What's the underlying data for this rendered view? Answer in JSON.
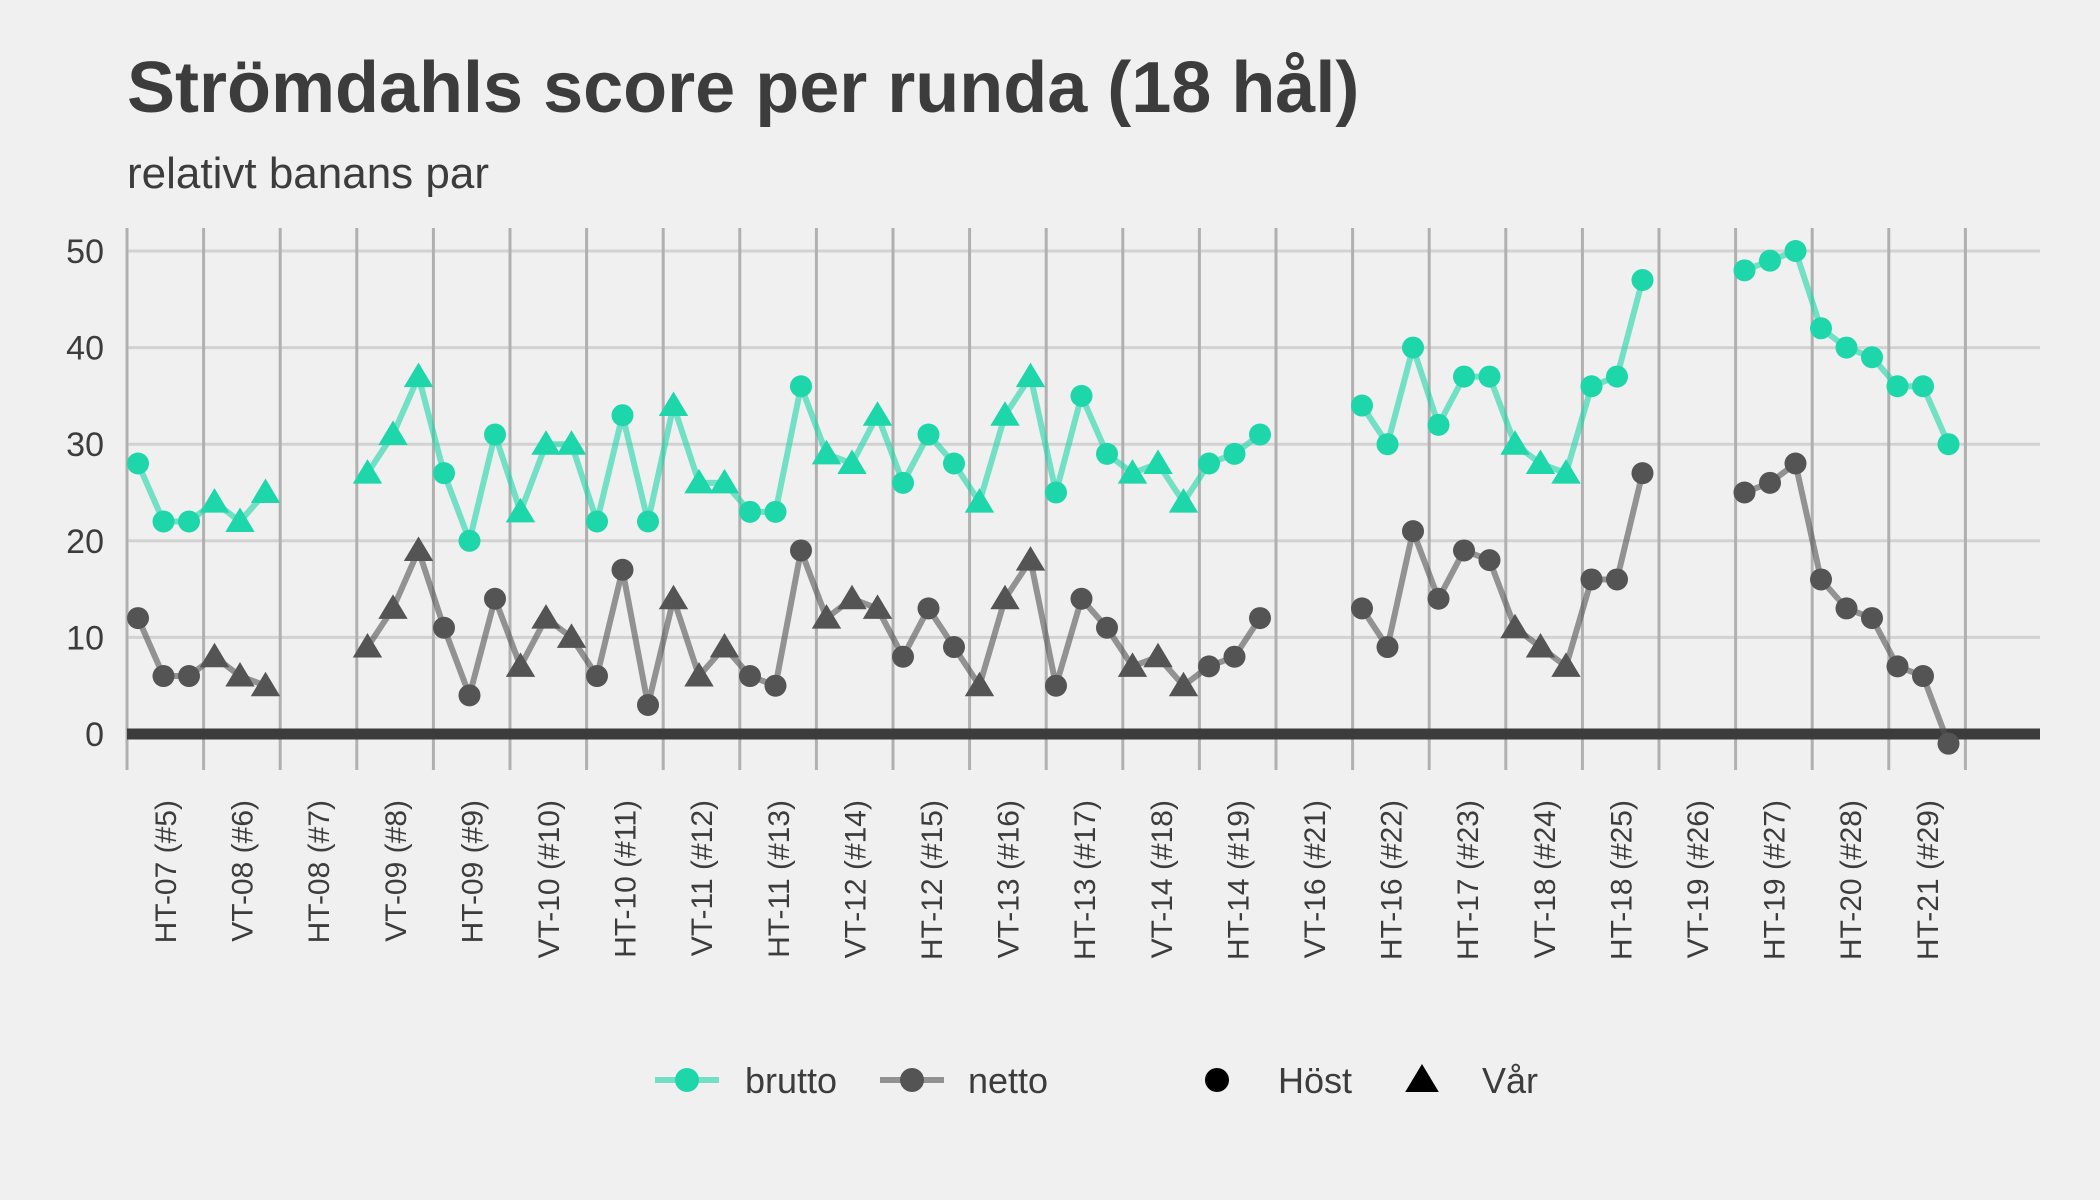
{
  "chart_data": {
    "type": "line",
    "title": "Strömdahls score per runda (18 hål)",
    "subtitle": "relativt banans par",
    "ylim": [
      -1,
      52
    ],
    "yticks": [
      0,
      10,
      20,
      30,
      40,
      50
    ],
    "grid": true,
    "legend_position": "bottom",
    "colors": {
      "brutto": "#1dd6a9",
      "netto": "#545454",
      "zero_line": "#3c3c3c",
      "background": "#f0f0f0",
      "grid": "#d2d2d2",
      "vline": "#b0b0b0"
    },
    "x_labels": [
      "HT-07 (#5)",
      "VT-08 (#6)",
      "HT-08 (#7)",
      "VT-09 (#8)",
      "HT-09 (#9)",
      "VT-10 (#10)",
      "HT-10 (#11)",
      "VT-11 (#12)",
      "HT-11 (#13)",
      "VT-12 (#14)",
      "HT-12 (#15)",
      "VT-13 (#16)",
      "HT-13 (#17)",
      "VT-14 (#18)",
      "HT-14 (#19)",
      "VT-16 (#21)",
      "HT-16 (#22)",
      "HT-17 (#23)",
      "VT-18 (#24)",
      "HT-18 (#25)",
      "VT-19 (#26)",
      "HT-19 (#27)",
      "HT-20 (#28)",
      "HT-21 (#29)"
    ],
    "series": [
      {
        "name": "brutto",
        "values": [
          28,
          22,
          22,
          24,
          22,
          25,
          null,
          null,
          null,
          27,
          31,
          37,
          27,
          20,
          31,
          23,
          30,
          30,
          22,
          33,
          22,
          34,
          26,
          26,
          23,
          23,
          36,
          29,
          28,
          33,
          26,
          31,
          28,
          24,
          33,
          37,
          25,
          35,
          29,
          27,
          28,
          24,
          28,
          29,
          31,
          null,
          null,
          null,
          34,
          30,
          40,
          32,
          37,
          37,
          30,
          28,
          27,
          36,
          37,
          47,
          null,
          null,
          null,
          48,
          49,
          50,
          42,
          40,
          39,
          36,
          36,
          30
        ]
      },
      {
        "name": "netto",
        "values": [
          12,
          6,
          6,
          8,
          6,
          5,
          null,
          null,
          null,
          9,
          13,
          19,
          11,
          4,
          14,
          7,
          12,
          10,
          6,
          17,
          3,
          14,
          6,
          9,
          6,
          5,
          19,
          12,
          14,
          13,
          8,
          13,
          9,
          5,
          14,
          18,
          5,
          14,
          11,
          7,
          8,
          5,
          7,
          8,
          12,
          null,
          null,
          null,
          13,
          9,
          21,
          14,
          19,
          18,
          11,
          9,
          7,
          16,
          16,
          27,
          null,
          null,
          null,
          25,
          26,
          28,
          16,
          13,
          12,
          7,
          6,
          -1
        ]
      }
    ],
    "season": [
      "Höst",
      "Höst",
      "Höst",
      "Vår",
      "Vår",
      "Vår",
      null,
      null,
      null,
      "Vår",
      "Vår",
      "Vår",
      "Höst",
      "Höst",
      "Höst",
      "Vår",
      "Vår",
      "Vår",
      "Höst",
      "Höst",
      "Höst",
      "Vår",
      "Vår",
      "Vår",
      "Höst",
      "Höst",
      "Höst",
      "Vår",
      "Vår",
      "Vår",
      "Höst",
      "Höst",
      "Höst",
      "Vår",
      "Vår",
      "Vår",
      "Höst",
      "Höst",
      "Höst",
      "Vår",
      "Vår",
      "Vår",
      "Höst",
      "Höst",
      "Höst",
      null,
      null,
      null,
      "Höst",
      "Höst",
      "Höst",
      "Höst",
      "Höst",
      "Höst",
      "Vår",
      "Vår",
      "Vår",
      "Höst",
      "Höst",
      "Höst",
      null,
      null,
      null,
      "Höst",
      "Höst",
      "Höst",
      "Höst",
      "Höst",
      "Höst",
      "Höst",
      "Höst",
      "Höst"
    ],
    "legend": {
      "series": [
        "brutto",
        "netto"
      ],
      "shapes": [
        {
          "label": "Höst",
          "shape": "circle"
        },
        {
          "label": "Vår",
          "shape": "triangle"
        }
      ]
    }
  }
}
